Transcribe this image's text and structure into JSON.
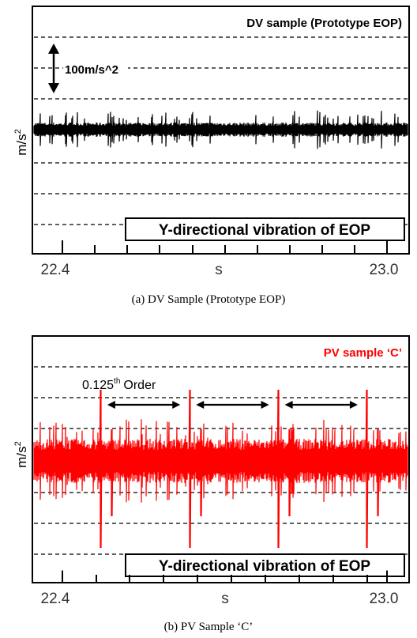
{
  "chart_data": [
    {
      "type": "line",
      "caption": "(a)  DV Sample (Prototype EOP)",
      "sample_label": "DV sample  (Prototype EOP)",
      "ylabel": "m/s",
      "ylabel_exponent": "2",
      "xlabel": "s",
      "x_tick_labels": [
        "22.4",
        "23.0"
      ],
      "xlim": [
        22.4,
        23.0
      ],
      "scale_annotation": "100m/s^2",
      "direction_label": "Y-directional vibration of EOP",
      "series": [
        {
          "color": "#000000"
        }
      ],
      "grid": "dashed horizontal"
    },
    {
      "type": "line",
      "caption": "(b) PV Sample ‘C’",
      "sample_label": "PV sample  ‘C’",
      "ylabel": "m/s",
      "ylabel_exponent": "2",
      "xlabel": "s",
      "x_tick_labels": [
        "22.4",
        "23.0"
      ],
      "xlim": [
        22.4,
        23.0
      ],
      "order_annotation": {
        "value": "0.125",
        "superscript": "th",
        "word": "Order"
      },
      "peak_times_s": [
        22.48,
        22.63,
        22.78,
        22.93
      ],
      "direction_label": "Y-directional vibration of EOP",
      "series": [
        {
          "color": "#ff0000"
        }
      ],
      "grid": "dashed horizontal"
    }
  ]
}
